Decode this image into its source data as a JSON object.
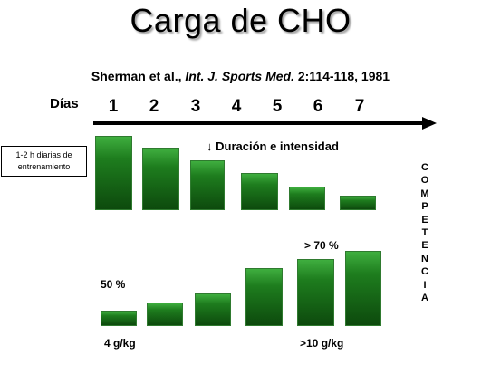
{
  "title": "Carga de CHO",
  "citation": {
    "authors": "Sherman et al., ",
    "journal": "Int. J. Sports Med.",
    "details": " 2:114-118, 1981"
  },
  "timeline": {
    "label": "Días",
    "days": [
      "1",
      "2",
      "3",
      "4",
      "5",
      "6",
      "7"
    ]
  },
  "training_note": "1-2 h diarias de entrenamiento",
  "duration_note": "↓ Duración e intensidad",
  "competencia_letters": [
    "C",
    "O",
    "M",
    "P",
    "E",
    "T",
    "E",
    "N",
    "C",
    "I",
    "A"
  ],
  "carb_labels": {
    "low_percent": "50 %",
    "high_percent": "> 70 %",
    "low_dose": "4 g/kg",
    "high_dose": ">10 g/kg"
  },
  "colors": {
    "bar_green": "#1e7d1e",
    "bar_dark": "#0d4a0d"
  }
}
